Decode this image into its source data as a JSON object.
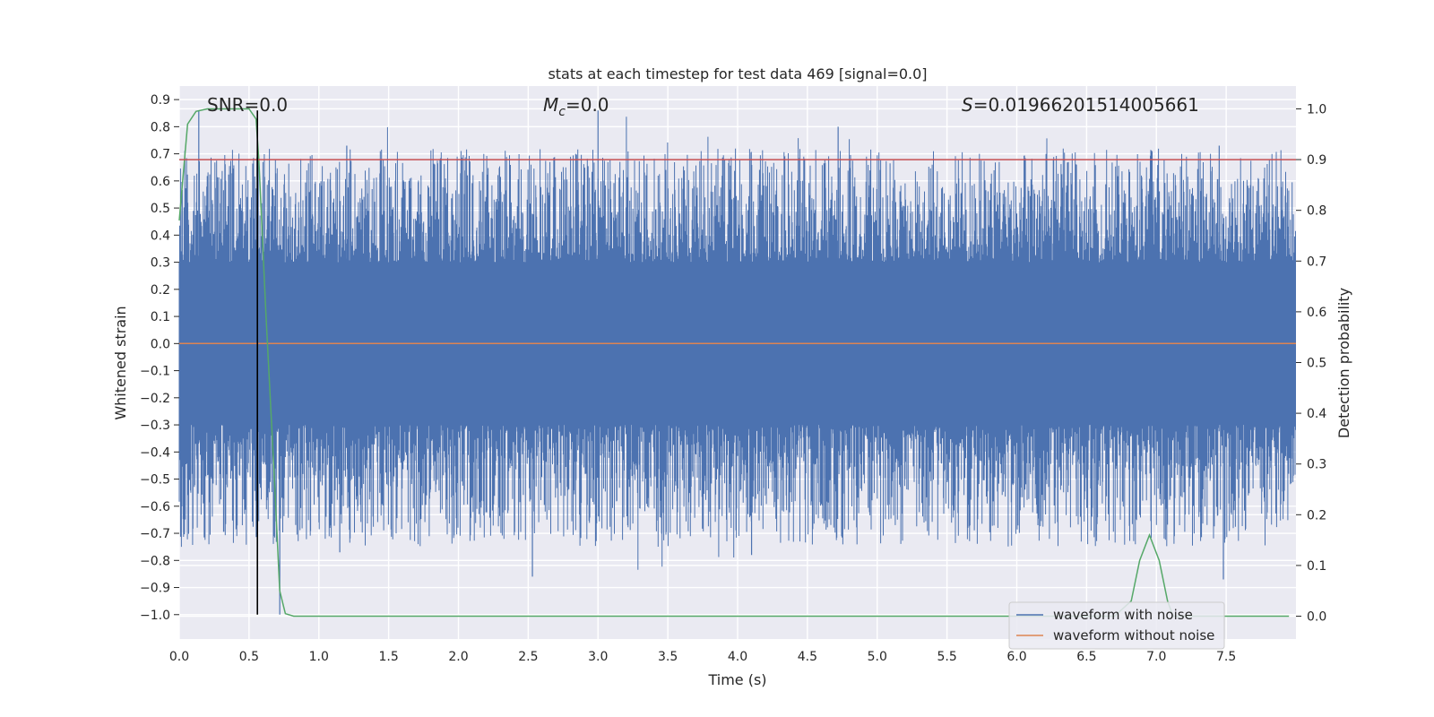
{
  "chart_data": {
    "type": "line",
    "title": "stats at each timestep for test data 469 [signal=0.0]",
    "xlabel": "Time (s)",
    "ylabel": "Whitened strain",
    "y2label": "Detection probability",
    "xlim": [
      0.0,
      8.0
    ],
    "ylim": [
      -1.09,
      0.95
    ],
    "y2lim": [
      -0.045,
      1.045
    ],
    "x_ticks": [
      0.0,
      0.5,
      1.0,
      1.5,
      2.0,
      2.5,
      3.0,
      3.5,
      4.0,
      4.5,
      5.0,
      5.5,
      6.0,
      6.5,
      7.0,
      7.5
    ],
    "x_tick_labels": [
      "0.0",
      "0.5",
      "1.0",
      "1.5",
      "2.0",
      "2.5",
      "3.0",
      "3.5",
      "4.0",
      "4.5",
      "5.0",
      "5.5",
      "6.0",
      "6.5",
      "7.0",
      "7.5"
    ],
    "y_ticks": [
      0.9,
      0.8,
      0.7,
      0.6,
      0.5,
      0.4,
      0.3,
      0.2,
      0.1,
      0.0,
      -0.1,
      -0.2,
      -0.3,
      -0.4,
      -0.5,
      -0.6,
      -0.7,
      -0.8,
      -0.9,
      -1.0
    ],
    "y_tick_labels": [
      "0.9",
      "0.8",
      "0.7",
      "0.6",
      "0.5",
      "0.4",
      "0.3",
      "0.2",
      "0.1",
      "0.0",
      "−0.1",
      "−0.2",
      "−0.3",
      "−0.4",
      "−0.5",
      "−0.6",
      "−0.7",
      "−0.8",
      "−0.9",
      "−1.0"
    ],
    "y2_ticks": [
      1.0,
      0.9,
      0.8,
      0.7,
      0.6,
      0.5,
      0.4,
      0.3,
      0.2,
      0.1,
      0.0
    ],
    "y2_tick_labels": [
      "1.0",
      "0.9",
      "0.8",
      "0.7",
      "0.6",
      "0.5",
      "0.4",
      "0.3",
      "0.2",
      "0.1",
      "0.0"
    ],
    "grid": true,
    "legend_position": "lower-right",
    "annotations": {
      "snr": "SNR=0.0",
      "mc_symbol": "M",
      "mc_subscript": "c",
      "mc_value": "=0.0",
      "s_symbol": "S",
      "s_value": "=0.01966201514005661"
    },
    "series": [
      {
        "name": "waveform with noise",
        "color": "#4c72b0",
        "axis": "left",
        "kind": "noise",
        "range": [
          -1.0,
          0.86
        ],
        "band": [
          -0.3,
          0.3
        ]
      },
      {
        "name": "waveform without noise",
        "color": "#dd8452",
        "axis": "left",
        "x": [
          0.0,
          8.0
        ],
        "y": [
          0.0,
          0.0
        ]
      },
      {
        "name": "detection probability",
        "color": "#55a868",
        "axis": "right",
        "x": [
          0.0,
          0.06,
          0.12,
          0.2,
          0.3,
          0.5,
          0.55,
          0.57,
          0.62,
          0.68,
          0.72,
          0.76,
          0.82,
          1.0,
          2.0,
          3.0,
          4.0,
          5.0,
          6.0,
          6.7,
          6.82,
          6.88,
          6.95,
          7.02,
          7.08,
          7.12,
          7.5,
          7.95
        ],
        "y": [
          0.78,
          0.97,
          0.995,
          1.0,
          1.0,
          1.0,
          0.98,
          0.9,
          0.6,
          0.28,
          0.05,
          0.005,
          0.0,
          0.0,
          0.0,
          0.0,
          0.0,
          0.0,
          0.0,
          0.0,
          0.03,
          0.11,
          0.16,
          0.11,
          0.03,
          0.0,
          0.0,
          0.0
        ]
      },
      {
        "name": "threshold",
        "color": "#c44e52",
        "axis": "right",
        "x": [
          0.0,
          8.0
        ],
        "y": [
          0.9,
          0.9
        ]
      },
      {
        "name": "marker",
        "color": "#000000",
        "axis": "left",
        "x": [
          0.56,
          0.56
        ],
        "y": [
          -1.0,
          0.86
        ]
      }
    ],
    "legend": [
      "waveform with noise",
      "waveform without noise"
    ]
  }
}
